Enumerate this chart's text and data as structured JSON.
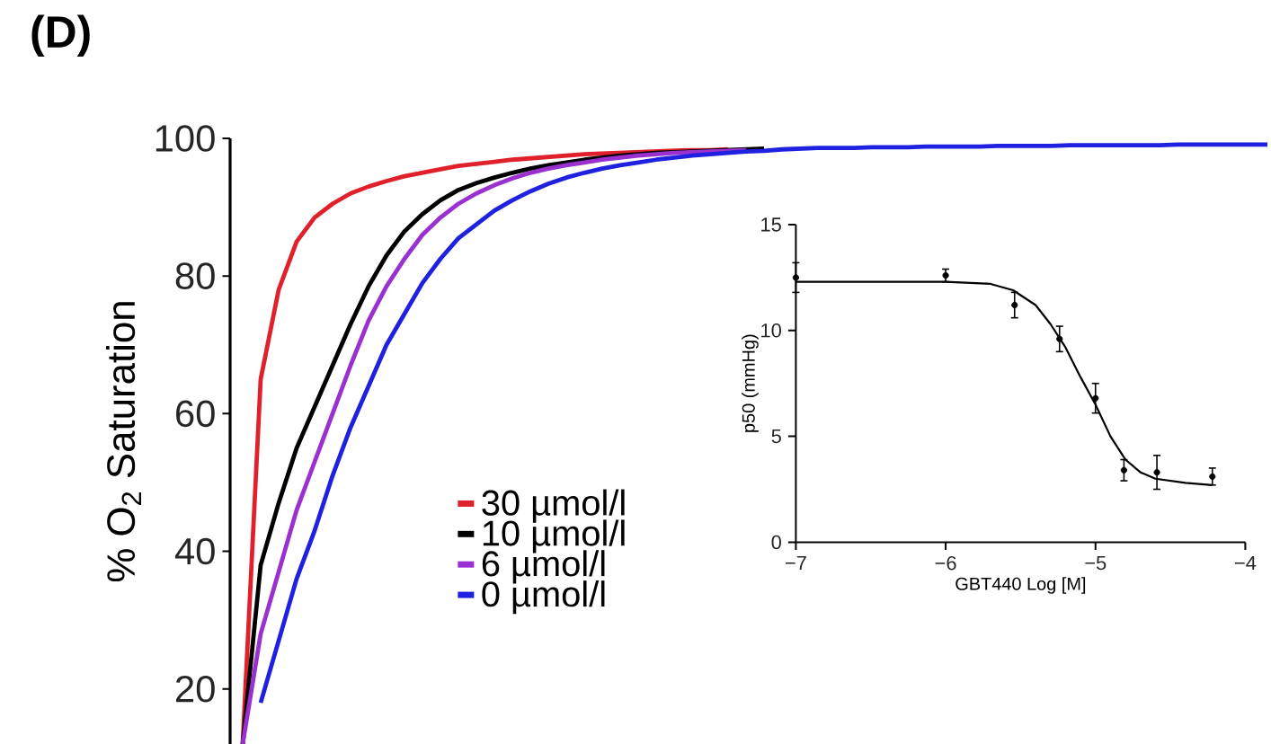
{
  "chart_data": [
    {
      "type": "line",
      "title": "(D)",
      "ylabel": "% O$_{2}$ Saturation",
      "categories": [
        null,
        null,
        null,
        null,
        null,
        null,
        null,
        null,
        null,
        null,
        null,
        null,
        null,
        null,
        null,
        null,
        null,
        null,
        null,
        null,
        null,
        null,
        null,
        null,
        null,
        null,
        null,
        null,
        null,
        null,
        null,
        null,
        null,
        null,
        null,
        null,
        null,
        null,
        null,
        null,
        null,
        null,
        null,
        null,
        null,
        null,
        null,
        null,
        null,
        null,
        null,
        null,
        null,
        null,
        null,
        null,
        null,
        null
      ],
      "series": [
        {
          "name": "30 µmol/l",
          "color": "#e0202a",
          "values": [
            12,
            65,
            78,
            85,
            88.5,
            90.5,
            92,
            93,
            93.8,
            94.5,
            95,
            95.5,
            96,
            96.3,
            96.6,
            96.9,
            97.1,
            97.3,
            97.5,
            97.7,
            97.8,
            97.9,
            98,
            98.1,
            98.2,
            98.3,
            98.3,
            98.4,
            null,
            null,
            null,
            null,
            null,
            null,
            null,
            null,
            null,
            null,
            null,
            null,
            null,
            null,
            null,
            null,
            null,
            null,
            null,
            null,
            null,
            null,
            null,
            null,
            null,
            null,
            null,
            null,
            null,
            null
          ]
        },
        {
          "name": "10 µmol/l",
          "color": "#000000",
          "values": [
            12,
            38,
            47,
            55,
            61,
            67,
            73,
            78.5,
            83,
            86.5,
            89,
            91,
            92.5,
            93.5,
            94.3,
            95,
            95.6,
            96.1,
            96.5,
            96.9,
            97.2,
            97.5,
            97.7,
            97.9,
            98,
            98.1,
            98.2,
            98.3,
            98.4,
            98.5,
            null,
            null,
            null,
            null,
            null,
            null,
            null,
            null,
            null,
            null,
            null,
            null,
            null,
            null,
            null,
            null,
            null,
            null,
            null,
            null,
            null,
            null,
            null,
            null,
            null,
            null,
            null,
            null
          ]
        },
        {
          "name": "6 µmol/l",
          "color": "#9b30d0",
          "values": [
            12,
            28,
            37,
            46,
            53,
            60,
            67,
            73.5,
            78.5,
            82.5,
            86,
            88.5,
            90.5,
            92,
            93.2,
            94.2,
            95,
            95.6,
            96.1,
            96.5,
            96.9,
            97.2,
            97.5,
            97.7,
            97.9,
            98,
            98.1,
            98.2,
            98.3,
            null,
            null,
            null,
            null,
            null,
            null,
            null,
            null,
            null,
            null,
            null,
            null,
            null,
            null,
            null,
            null,
            null,
            null,
            null,
            null,
            null,
            null,
            null,
            null,
            null,
            null,
            null,
            null,
            null
          ]
        },
        {
          "name": "0 µmol/l",
          "color": "#2020e0",
          "values": [
            null,
            18,
            27,
            36,
            43,
            51,
            58,
            64,
            70,
            74.5,
            79,
            82.5,
            85.5,
            87.5,
            89.5,
            91,
            92.3,
            93.4,
            94.3,
            95,
            95.6,
            96.1,
            96.5,
            96.9,
            97.2,
            97.5,
            97.7,
            97.9,
            98.1,
            98.2,
            98.4,
            98.5,
            98.6,
            98.6,
            98.6,
            98.7,
            98.7,
            98.7,
            98.8,
            98.8,
            98.8,
            98.8,
            98.9,
            98.9,
            98.9,
            98.9,
            99,
            99,
            99,
            99,
            99,
            99,
            99.1,
            99.1,
            99.1,
            99.1,
            99.1,
            99.1
          ]
        }
      ],
      "ylim": [
        12,
        100
      ],
      "yticks": [
        20,
        40,
        60,
        80,
        100
      ],
      "legend": "bottom left",
      "tick_labels": "y"
    },
    {
      "type": "line",
      "xlabel": "GBT440 Log [M]",
      "ylabel": "p50 (mmHg)",
      "series": [
        {
          "type": "scatter",
          "color": "#000000",
          "x": [
            -7,
            -6,
            -5.54,
            -5.24,
            -5.0,
            -4.81,
            -4.59,
            -4.22
          ],
          "values": [
            12.5,
            12.6,
            11.2,
            9.6,
            6.8,
            3.4,
            3.3,
            3.1
          ],
          "errors": [
            0.7,
            0.3,
            0.6,
            0.6,
            0.7,
            0.5,
            0.8,
            0.4
          ]
        },
        {
          "type": "line",
          "color": "#000000",
          "x": [
            -7,
            -6,
            -5.7,
            -5.55,
            -5.4,
            -5.3,
            -5.2,
            -5.1,
            -5.0,
            -4.9,
            -4.8,
            -4.7,
            -4.6,
            -4.4,
            -4.22
          ],
          "values": [
            12.3,
            12.3,
            12.2,
            11.9,
            11.2,
            10.3,
            9.2,
            7.8,
            6.5,
            5.0,
            3.9,
            3.3,
            3.0,
            2.8,
            2.7
          ]
        }
      ],
      "xlim": [
        -7,
        -4
      ],
      "xticks": [
        {
          "value": -7,
          "label": "−7"
        },
        {
          "value": -6,
          "label": "−6"
        },
        {
          "value": -5,
          "label": "−5"
        },
        {
          "value": -4,
          "label": "−4"
        }
      ],
      "ylim": [
        0,
        15
      ],
      "yticks": [
        0,
        5,
        10,
        15
      ]
    }
  ]
}
